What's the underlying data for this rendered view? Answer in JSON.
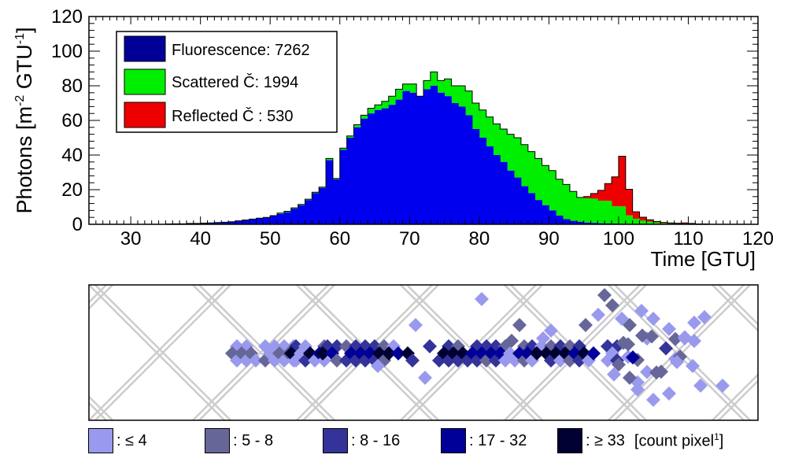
{
  "chart_data": [
    {
      "type": "bar",
      "stacked": true,
      "xlabel": "Time [GTU]",
      "ylabel": "Photons [m",
      "ylabel_sup1": "-2",
      "ylabel_mid": " GTU",
      "ylabel_sup2": "-1",
      "ylabel_end": "]",
      "xlim": [
        24,
        120
      ],
      "ylim": [
        0,
        120
      ],
      "xticks": [
        "30",
        "40",
        "50",
        "60",
        "70",
        "80",
        "90",
        "100",
        "110",
        "120"
      ],
      "yticks": [
        "0",
        "20",
        "40",
        "60",
        "80",
        "100",
        "120"
      ],
      "grid": false,
      "legend_position": "top-left",
      "x": [
        35,
        36,
        37,
        38,
        39,
        40,
        41,
        42,
        43,
        44,
        45,
        46,
        47,
        48,
        49,
        50,
        51,
        52,
        53,
        54,
        55,
        56,
        57,
        58,
        59,
        60,
        61,
        62,
        63,
        64,
        65,
        66,
        67,
        68,
        69,
        70,
        71,
        72,
        73,
        74,
        75,
        76,
        77,
        78,
        79,
        80,
        81,
        82,
        83,
        84,
        85,
        86,
        87,
        88,
        89,
        90,
        91,
        92,
        93,
        94,
        95,
        96,
        97,
        98,
        99,
        100,
        101,
        102,
        103,
        104,
        105,
        106,
        107,
        108,
        109,
        110,
        111,
        112
      ],
      "series": [
        {
          "name": "Fluorescence: 7262",
          "color": "#0000ee",
          "values": [
            0.2,
            0.3,
            0.3,
            0.5,
            0.5,
            0.7,
            0.8,
            1,
            1.2,
            1.5,
            2,
            2.5,
            3,
            3.5,
            4,
            5,
            6,
            7,
            9,
            11,
            14,
            18,
            21,
            37,
            26,
            43,
            50,
            56,
            61,
            64,
            66,
            67,
            69,
            72,
            77,
            76,
            74,
            78,
            80,
            76,
            74,
            70,
            68,
            63,
            55,
            50,
            45,
            40,
            36,
            31,
            27,
            22,
            18,
            14,
            11,
            8,
            5,
            3,
            2,
            1.5,
            1,
            0.8,
            0.6,
            0.5,
            0.4,
            0.3,
            0.2,
            0.2,
            0.1,
            0.1,
            0.1,
            0.1,
            0,
            0,
            0,
            0,
            0,
            0
          ]
        },
        {
          "name": "Scattered Č: 1994",
          "color": "#00ee00",
          "values": [
            0,
            0,
            0,
            0,
            0,
            0,
            0,
            0,
            0,
            0,
            0,
            0,
            0,
            0,
            0,
            0,
            0.5,
            0.5,
            0.5,
            0.5,
            0.5,
            0.5,
            0.5,
            1,
            0.5,
            1,
            1,
            1.5,
            2,
            3,
            3,
            4,
            5,
            6,
            4,
            5,
            0,
            5,
            8,
            7,
            10,
            10,
            12,
            14,
            15,
            16,
            17,
            18,
            19,
            21,
            23,
            24,
            24,
            24,
            23,
            23,
            21,
            20,
            17,
            14,
            14,
            14,
            13,
            13,
            10,
            10,
            5,
            3,
            2,
            1.5,
            1,
            0.5,
            0.5,
            0.3,
            0.3,
            0,
            0,
            0
          ]
        },
        {
          "name": "Reflected Č : 530",
          "color": "#ee0000",
          "values": [
            0,
            0,
            0,
            0,
            0,
            0,
            0,
            0,
            0,
            0,
            0,
            0,
            0,
            0,
            0,
            0,
            0,
            0,
            0,
            0,
            0,
            0,
            0,
            0,
            0,
            0,
            0,
            0,
            0,
            0,
            0,
            0,
            0,
            0,
            0,
            0,
            0,
            0,
            0,
            0,
            0,
            0,
            0,
            0,
            0,
            0,
            0,
            0,
            0,
            0,
            0,
            0,
            0,
            0,
            0,
            0,
            0,
            0,
            0,
            0,
            1,
            3,
            6,
            10,
            17,
            29,
            15,
            4,
            2,
            1,
            0.5,
            0.5,
            0.3,
            0.3,
            0.5,
            0.5,
            0.2,
            0.2
          ]
        }
      ]
    },
    {
      "type": "heatmap",
      "legend": [
        {
          "label": ": ≤ 4",
          "color": "#9999ee"
        },
        {
          "label": ": 5 - 8",
          "color": "#666699"
        },
        {
          "label": ": 8 - 16",
          "color": "#333399"
        },
        {
          "label": ": 17 - 32",
          "color": "#000099"
        },
        {
          "label": ": ≥ 33",
          "color": "#000033"
        }
      ],
      "unit": "[count pixel",
      "unit_sup": "1",
      "unit_end": "]"
    }
  ]
}
